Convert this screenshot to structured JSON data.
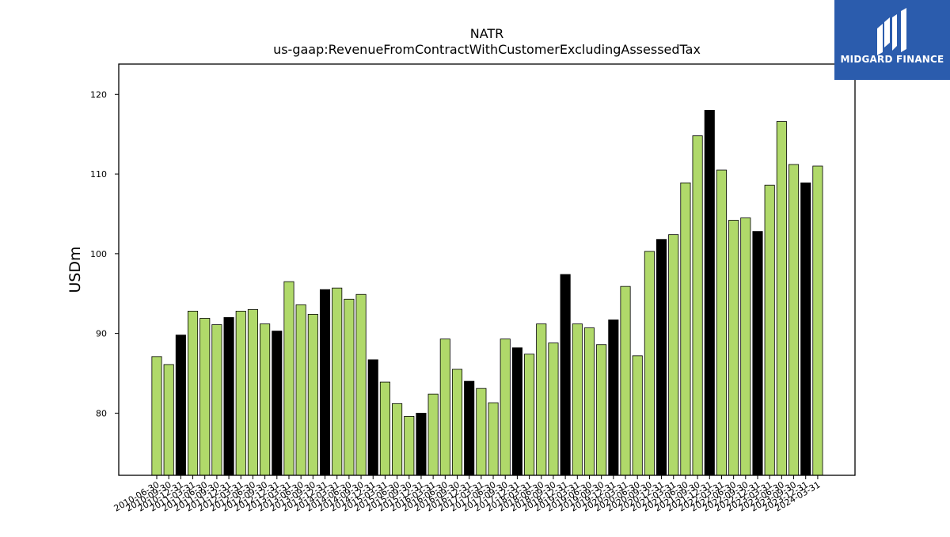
{
  "chart_data": {
    "type": "bar",
    "title": "NATR",
    "subtitle": "us-gaap:RevenueFromContractWithCustomerExcludingAssessedTax",
    "xlabel": "",
    "ylabel": "USDm",
    "ylim": [
      72.2,
      123.8
    ],
    "yticks": [
      80,
      90,
      100,
      110,
      120
    ],
    "grid": false,
    "colors": {
      "quarter": "#b0d96a",
      "year_end": "#000000",
      "edge": "#000000"
    },
    "categories": [
      "2010-06-30",
      "2010-09-30",
      "2010-12-31",
      "2011-03-31",
      "2011-06-30",
      "2011-09-30",
      "2011-12-31",
      "2012-03-31",
      "2012-06-30",
      "2012-09-30",
      "2012-12-31",
      "2013-03-31",
      "2013-06-30",
      "2013-09-30",
      "2013-12-31",
      "2014-03-31",
      "2014-06-30",
      "2014-09-30",
      "2014-12-31",
      "2015-03-31",
      "2015-06-30",
      "2015-09-30",
      "2015-12-31",
      "2016-03-31",
      "2016-06-30",
      "2016-09-30",
      "2016-12-31",
      "2017-03-31",
      "2017-06-30",
      "2017-09-30",
      "2017-12-31",
      "2018-03-31",
      "2018-06-30",
      "2018-09-30",
      "2018-12-31",
      "2019-03-31",
      "2019-06-30",
      "2019-09-30",
      "2019-12-31",
      "2020-03-31",
      "2020-06-30",
      "2020-09-30",
      "2020-12-31",
      "2021-03-31",
      "2021-06-30",
      "2021-09-30",
      "2021-12-31",
      "2022-03-31",
      "2022-06-30",
      "2022-09-30",
      "2022-12-31",
      "2023-03-31",
      "2023-06-30",
      "2023-09-30",
      "2023-12-31",
      "2024-03-31"
    ],
    "values": [
      87.1,
      86.1,
      89.8,
      92.8,
      91.9,
      91.1,
      92.0,
      92.8,
      93.0,
      91.2,
      90.3,
      96.5,
      93.6,
      92.4,
      95.5,
      95.7,
      94.3,
      94.9,
      86.7,
      83.9,
      81.2,
      79.6,
      80.0,
      82.4,
      89.3,
      85.5,
      84.0,
      83.1,
      81.3,
      89.3,
      88.2,
      87.4,
      91.2,
      88.8,
      97.4,
      91.2,
      90.7,
      88.6,
      91.7,
      95.9,
      87.2,
      100.3,
      101.8,
      102.4,
      108.9,
      114.8,
      118.0,
      110.5,
      104.2,
      104.5,
      102.8,
      108.6,
      116.6,
      111.2,
      108.9,
      111.0
    ],
    "year_end_flags": [
      0,
      0,
      1,
      0,
      0,
      0,
      1,
      0,
      0,
      0,
      1,
      0,
      0,
      0,
      1,
      0,
      0,
      0,
      1,
      0,
      0,
      0,
      1,
      0,
      0,
      0,
      1,
      0,
      0,
      0,
      1,
      0,
      0,
      0,
      1,
      0,
      0,
      0,
      1,
      0,
      0,
      0,
      1,
      0,
      0,
      0,
      1,
      0,
      0,
      0,
      1,
      0,
      0,
      0,
      1,
      0
    ]
  },
  "logo": {
    "text": "MIDGARD FINANCE",
    "icon": "midgard-logo-icon"
  }
}
